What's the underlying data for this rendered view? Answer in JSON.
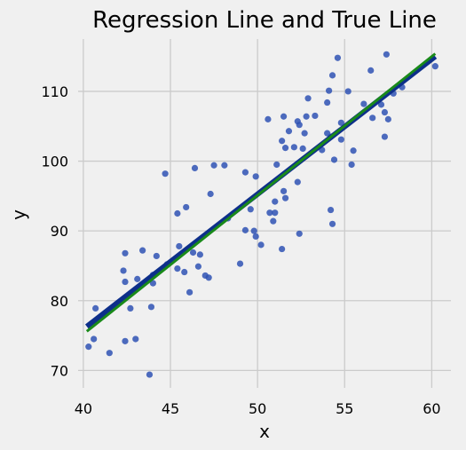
{
  "chart_data": {
    "type": "scatter",
    "title": "Regression Line and True Line",
    "xlabel": "x",
    "ylabel": "y",
    "xlim": [
      39.7,
      61.1
    ],
    "ylim": [
      67.5,
      117.5
    ],
    "xticks": [
      40,
      45,
      50,
      55,
      60
    ],
    "yticks": [
      70,
      80,
      90,
      100,
      110
    ],
    "xtick_labels": [
      "40",
      "45",
      "50",
      "55",
      "60"
    ],
    "ytick_labels": [
      "70",
      "80",
      "90",
      "100",
      "110"
    ],
    "grid": true,
    "colors": {
      "points": "#2f52b4",
      "regression_line": "#0d2f8a",
      "true_line": "#1a8a1a",
      "background": "#f0f0f0",
      "grid": "#cbcbcb"
    },
    "points": [
      [
        40.3,
        73.4
      ],
      [
        40.6,
        74.5
      ],
      [
        40.7,
        78.9
      ],
      [
        41.5,
        72.5
      ],
      [
        42.3,
        84.3
      ],
      [
        42.4,
        82.7
      ],
      [
        42.4,
        86.8
      ],
      [
        42.4,
        74.2
      ],
      [
        42.7,
        78.9
      ],
      [
        43.0,
        74.5
      ],
      [
        43.1,
        83.1
      ],
      [
        43.4,
        87.2
      ],
      [
        43.8,
        69.4
      ],
      [
        43.8,
        83.1
      ],
      [
        43.9,
        79.1
      ],
      [
        44.0,
        83.7
      ],
      [
        44.0,
        82.5
      ],
      [
        44.2,
        86.4
      ],
      [
        44.7,
        98.2
      ],
      [
        44.8,
        85.2
      ],
      [
        45.4,
        84.6
      ],
      [
        45.4,
        92.5
      ],
      [
        45.5,
        87.8
      ],
      [
        45.8,
        84.1
      ],
      [
        45.9,
        93.4
      ],
      [
        46.1,
        81.2
      ],
      [
        46.3,
        86.9
      ],
      [
        46.4,
        99.0
      ],
      [
        46.6,
        84.9
      ],
      [
        46.7,
        86.6
      ],
      [
        47.0,
        83.6
      ],
      [
        47.2,
        83.3
      ],
      [
        47.3,
        95.3
      ],
      [
        47.5,
        99.4
      ],
      [
        48.1,
        99.4
      ],
      [
        48.3,
        91.8
      ],
      [
        49.0,
        85.3
      ],
      [
        49.3,
        98.4
      ],
      [
        49.3,
        90.1
      ],
      [
        49.6,
        93.1
      ],
      [
        49.8,
        90.0
      ],
      [
        49.9,
        89.2
      ],
      [
        49.9,
        97.8
      ],
      [
        50.2,
        88.0
      ],
      [
        50.6,
        106.0
      ],
      [
        50.7,
        92.6
      ],
      [
        50.9,
        91.4
      ],
      [
        51.0,
        94.2
      ],
      [
        51.0,
        92.6
      ],
      [
        51.1,
        99.5
      ],
      [
        51.4,
        87.4
      ],
      [
        51.4,
        102.9
      ],
      [
        51.5,
        95.7
      ],
      [
        51.6,
        94.7
      ],
      [
        51.5,
        106.4
      ],
      [
        51.6,
        101.9
      ],
      [
        51.8,
        104.3
      ],
      [
        52.1,
        102.0
      ],
      [
        52.3,
        105.7
      ],
      [
        52.3,
        97.0
      ],
      [
        52.4,
        105.2
      ],
      [
        52.4,
        89.6
      ],
      [
        52.6,
        101.8
      ],
      [
        52.7,
        104.0
      ],
      [
        52.8,
        106.4
      ],
      [
        52.9,
        109.0
      ],
      [
        53.3,
        106.5
      ],
      [
        53.7,
        101.6
      ],
      [
        54.0,
        108.4
      ],
      [
        54.0,
        104.0
      ],
      [
        54.1,
        110.1
      ],
      [
        54.2,
        103.5
      ],
      [
        54.2,
        93.0
      ],
      [
        54.3,
        91.0
      ],
      [
        54.3,
        112.3
      ],
      [
        54.4,
        100.2
      ],
      [
        54.6,
        114.8
      ],
      [
        54.8,
        105.5
      ],
      [
        54.8,
        103.1
      ],
      [
        55.2,
        110.0
      ],
      [
        55.4,
        99.5
      ],
      [
        55.5,
        101.5
      ],
      [
        56.1,
        108.2
      ],
      [
        56.5,
        113.0
      ],
      [
        56.6,
        106.2
      ],
      [
        57.1,
        108.1
      ],
      [
        57.3,
        107.0
      ],
      [
        57.3,
        103.5
      ],
      [
        57.4,
        115.3
      ],
      [
        57.5,
        106.0
      ],
      [
        57.8,
        109.7
      ],
      [
        58.3,
        110.6
      ],
      [
        60.2,
        113.6
      ]
    ],
    "regression_line": {
      "x": [
        40.2,
        60.2
      ],
      "y": [
        76.3,
        115.0
      ]
    },
    "true_line": {
      "x": [
        40.2,
        60.2
      ],
      "y": [
        75.6,
        115.4
      ]
    }
  }
}
